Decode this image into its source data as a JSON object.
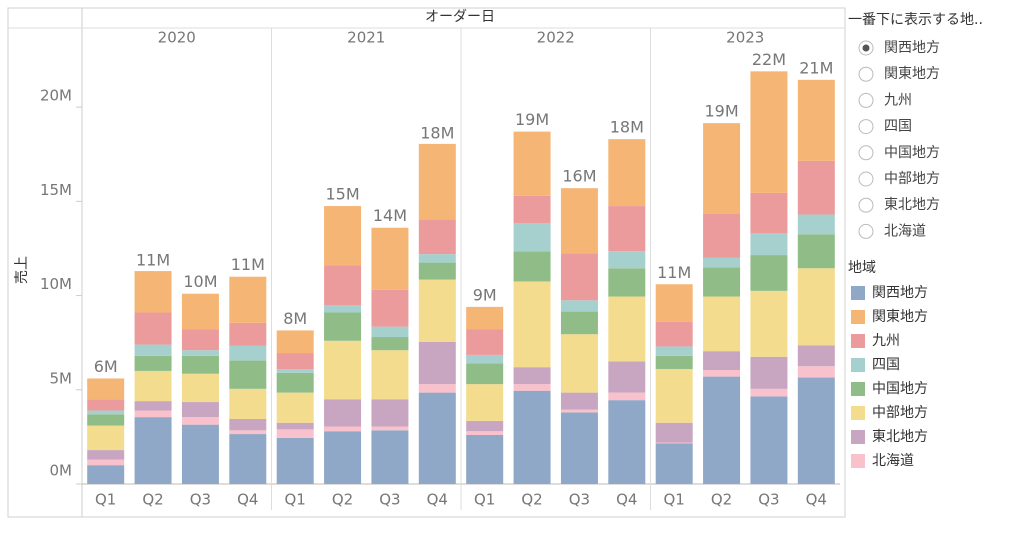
{
  "chart_data": {
    "type": "stacked_bar",
    "header": "オーダー日",
    "y_label": "売上",
    "groups": [
      "2020",
      "2021",
      "2022",
      "2023"
    ],
    "categories": [
      "Q1",
      "Q2",
      "Q3",
      "Q4",
      "Q1",
      "Q2",
      "Q3",
      "Q4",
      "Q1",
      "Q2",
      "Q3",
      "Q4",
      "Q1",
      "Q2",
      "Q3",
      "Q4"
    ],
    "ylim": [
      0,
      24.2
    ],
    "yticks": [
      {
        "value": 0,
        "label": "0M"
      },
      {
        "value": 5,
        "label": "5M"
      },
      {
        "value": 10,
        "label": "10M"
      },
      {
        "value": 15,
        "label": "15M"
      },
      {
        "value": 20,
        "label": "20M"
      }
    ],
    "legend_title": "地域",
    "series": [
      {
        "name": "関西地方",
        "color": "#8fa8c7",
        "values": [
          1.0,
          3.55,
          3.15,
          2.65,
          2.45,
          2.8,
          2.85,
          4.85,
          2.6,
          4.95,
          3.8,
          4.45,
          2.15,
          5.7,
          4.65,
          5.65
        ]
      },
      {
        "name": "関東地方",
        "color": "#f5b575",
        "values": [
          1.1,
          2.2,
          1.9,
          2.45,
          1.2,
          3.15,
          3.3,
          4.0,
          1.2,
          3.4,
          3.45,
          3.55,
          2.0,
          4.8,
          6.45,
          4.3
        ]
      },
      {
        "name": "九州",
        "color": "#ec9b9d",
        "values": [
          0.6,
          1.7,
          1.1,
          1.2,
          0.85,
          2.1,
          1.95,
          1.85,
          1.35,
          1.45,
          2.5,
          2.4,
          1.3,
          2.35,
          2.15,
          2.85
        ]
      },
      {
        "name": "四国",
        "color": "#a6d0cd",
        "values": [
          0.2,
          0.6,
          0.3,
          0.8,
          0.2,
          0.4,
          0.55,
          0.45,
          0.45,
          1.5,
          0.6,
          0.9,
          0.5,
          0.5,
          1.15,
          1.05
        ]
      },
      {
        "name": "中国地方",
        "color": "#90bd87",
        "values": [
          0.6,
          0.8,
          0.95,
          1.5,
          1.05,
          1.5,
          0.7,
          0.9,
          1.1,
          1.6,
          1.2,
          1.5,
          0.7,
          1.55,
          1.9,
          1.8
        ]
      },
      {
        "name": "中部地方",
        "color": "#f3dc8e",
        "values": [
          1.3,
          1.6,
          1.5,
          1.6,
          1.6,
          3.1,
          2.6,
          3.3,
          1.95,
          4.55,
          3.1,
          3.45,
          2.85,
          2.9,
          3.5,
          4.1
        ]
      },
      {
        "name": "東北地方",
        "color": "#c8a6c1",
        "values": [
          0.5,
          0.5,
          0.8,
          0.6,
          0.35,
          1.45,
          1.45,
          2.25,
          0.55,
          0.9,
          0.9,
          1.65,
          1.05,
          1.0,
          1.7,
          1.1
        ]
      },
      {
        "name": "北海道",
        "color": "#f9c1cb",
        "values": [
          0.3,
          0.35,
          0.4,
          0.2,
          0.45,
          0.25,
          0.2,
          0.45,
          0.2,
          0.35,
          0.15,
          0.4,
          0.05,
          0.35,
          0.4,
          0.6
        ]
      }
    ],
    "totals": {
      "values": [
        5.6,
        11.25,
        10.1,
        11.0,
        8.15,
        14.75,
        13.6,
        18.0,
        9.4,
        18.7,
        15.7,
        18.3,
        10.6,
        19.15,
        21.9,
        21.45
      ],
      "value_labels": [
        "6M",
        "11M",
        "10M",
        "11M",
        "8M",
        "15M",
        "14M",
        "18M",
        "9M",
        "19M",
        "16M",
        "18M",
        "11M",
        "19M",
        "22M",
        "21M"
      ]
    },
    "filter": {
      "title": "一番下に表示する地..",
      "options": [
        "関西地方",
        "関東地方",
        "九州",
        "四国",
        "中国地方",
        "中部地方",
        "東北地方",
        "北海道"
      ],
      "selected": 0
    }
  }
}
